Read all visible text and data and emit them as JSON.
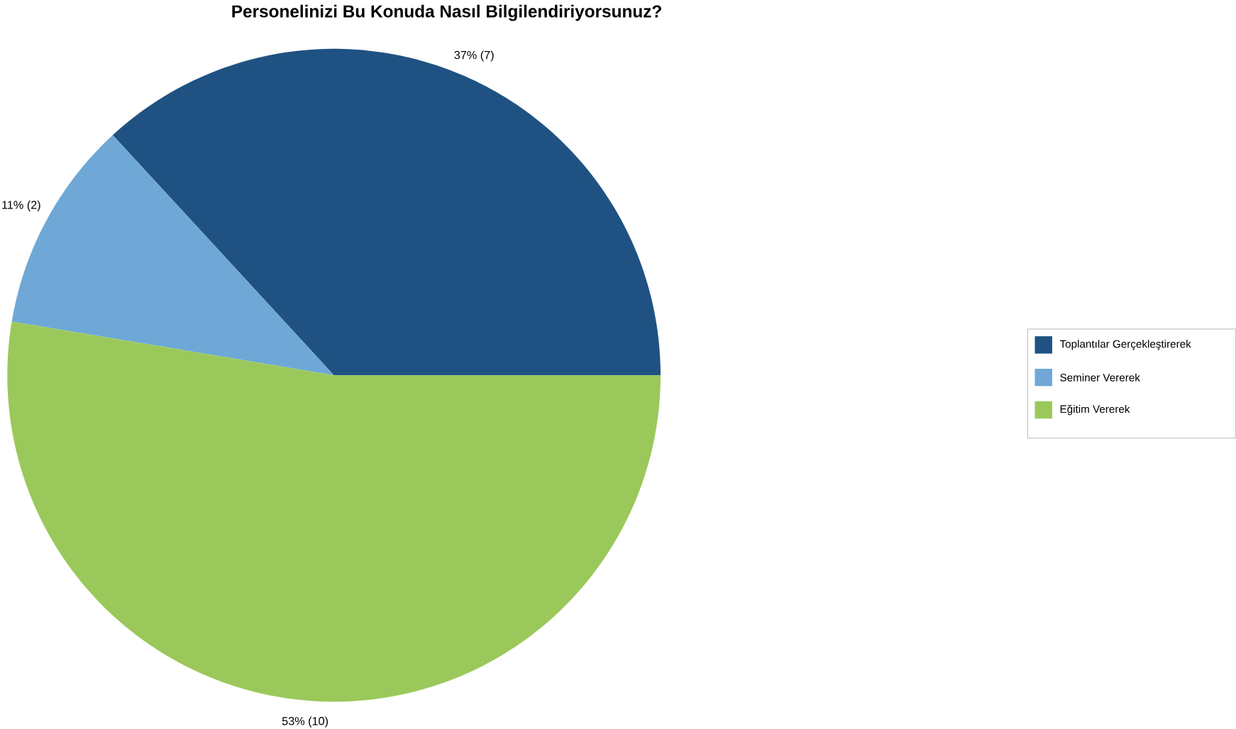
{
  "chart_data": {
    "type": "pie",
    "title": "Personelinizi Bu Konuda Nasıl Bilgilendiriyorsunuz?",
    "categories": [
      "Toplantılar Gerçekleştirerek",
      "Seminer Vererek",
      "Eğitim Vererek"
    ],
    "values": [
      7,
      2,
      10
    ],
    "value_labels": [
      "37% (7)",
      "11% (2)",
      "53% (10)"
    ],
    "colors": [
      "#1f5282",
      "#6fa8d6",
      "#9bc85a"
    ],
    "legend": "right"
  }
}
